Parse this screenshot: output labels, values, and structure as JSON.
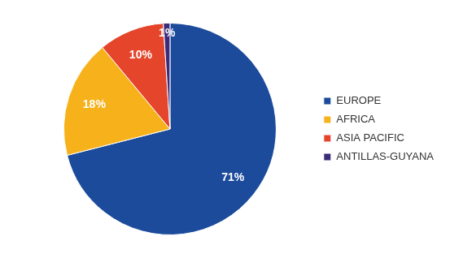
{
  "chart_data": {
    "type": "pie",
    "categories": [
      "EUROPE",
      "AFRICA",
      "ASIA PACIFIC",
      "ANTILLAS-GUYANA"
    ],
    "values": [
      71,
      18,
      10,
      1
    ],
    "value_labels": [
      "71%",
      "18%",
      "10%",
      "1%"
    ],
    "colors": [
      "#1c4b9c",
      "#f6b11b",
      "#e5452b",
      "#3b2b7b"
    ],
    "data_labels": true,
    "legend": "right"
  }
}
